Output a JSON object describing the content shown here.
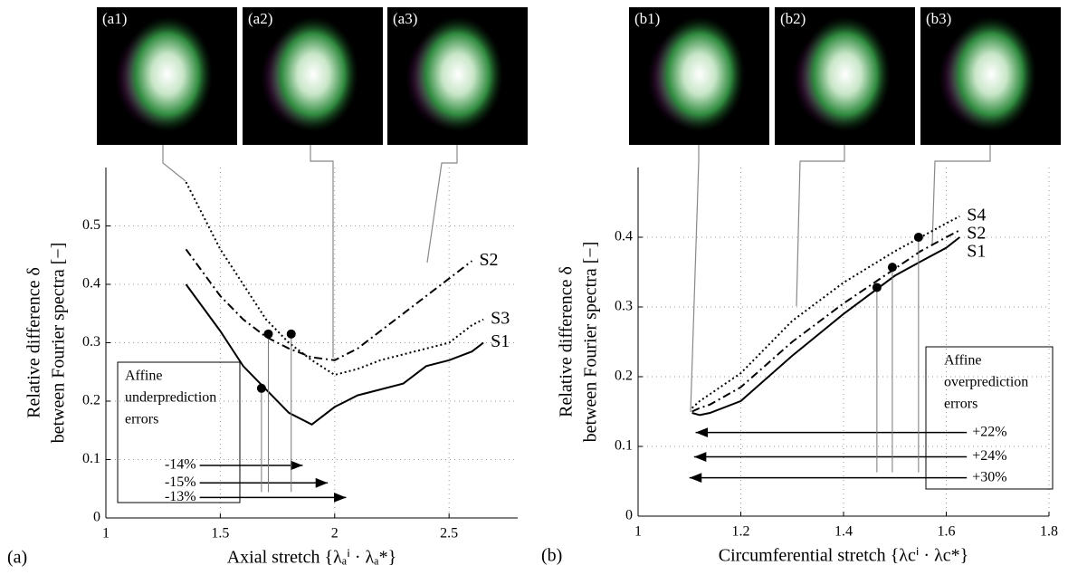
{
  "chart_data": [
    {
      "type": "line",
      "panel_label": "(a)",
      "insets": [
        "(a1)",
        "(a2)",
        "(a3)"
      ],
      "xlabel": "Axial stretch {λₐⁱ · λₐ*}",
      "ylabel": [
        "Relative difference δ",
        "between Fourier spectra [−]"
      ],
      "x": [
        1.35,
        1.5,
        1.6,
        1.7,
        1.8,
        1.9,
        2.0,
        2.1,
        2.2,
        2.3,
        2.4,
        2.5,
        2.6,
        2.65
      ],
      "series": [
        {
          "name": "S1",
          "color": "#000000",
          "style": "solid",
          "values": [
            0.4,
            0.32,
            0.26,
            0.22,
            0.18,
            0.16,
            0.19,
            0.21,
            0.22,
            0.23,
            0.26,
            0.27,
            0.285,
            0.3
          ]
        },
        {
          "name": "S2",
          "color": "#000000",
          "style": "dash-dot",
          "values": [
            0.46,
            0.38,
            0.34,
            0.31,
            0.29,
            0.275,
            0.27,
            0.29,
            0.32,
            0.35,
            0.38,
            0.41,
            0.44,
            null
          ]
        },
        {
          "name": "S3",
          "color": "#000000",
          "style": "dotted",
          "values": [
            0.575,
            0.46,
            0.4,
            0.34,
            0.3,
            0.27,
            0.245,
            0.255,
            0.27,
            0.28,
            0.29,
            0.3,
            0.33,
            0.34
          ]
        }
      ],
      "points": {
        "x": [
          1.68,
          1.71,
          1.81
        ],
        "y": [
          0.222,
          0.315,
          0.315
        ]
      },
      "box": [
        "Affine",
        "underprediction",
        "errors"
      ],
      "arrows": [
        {
          "label": "-14%",
          "x_from": 1.41,
          "x_to": 1.86,
          "y": 0.09
        },
        {
          "label": "-15%",
          "x_from": 1.41,
          "x_to": 1.97,
          "y": 0.06
        },
        {
          "label": "-13%",
          "x_from": 1.41,
          "x_to": 2.05,
          "y": 0.035
        }
      ],
      "xlim": [
        1,
        2.8
      ],
      "ylim": [
        0,
        0.6
      ],
      "xticks": [
        1,
        1.5,
        2,
        2.5
      ],
      "yticks": [
        0,
        0.1,
        0.2,
        0.3,
        0.4,
        0.5
      ],
      "grid": true
    },
    {
      "type": "line",
      "panel_label": "(b)",
      "insets": [
        "(b1)",
        "(b2)",
        "(b3)"
      ],
      "xlabel": "Circumferential stretch {λcⁱ · λc*}",
      "ylabel": [
        "Relative difference δ",
        "between Fourier spectra [−]"
      ],
      "x": [
        1.105,
        1.12,
        1.14,
        1.2,
        1.3,
        1.4,
        1.5,
        1.55,
        1.6,
        1.626
      ],
      "series": [
        {
          "name": "S4",
          "color": "#000000",
          "style": "dotted",
          "values": [
            0.155,
            0.165,
            0.175,
            0.205,
            0.28,
            0.335,
            0.38,
            0.4,
            0.42,
            0.43
          ]
        },
        {
          "name": "S2",
          "color": "#000000",
          "style": "dash-dot",
          "values": [
            0.15,
            0.155,
            0.16,
            0.185,
            0.25,
            0.305,
            0.355,
            0.38,
            0.4,
            0.41
          ]
        },
        {
          "name": "S1",
          "color": "#000000",
          "style": "solid",
          "values": [
            0.148,
            0.145,
            0.148,
            0.165,
            0.23,
            0.29,
            0.345,
            0.365,
            0.385,
            0.4
          ]
        }
      ],
      "points": {
        "x": [
          1.465,
          1.495,
          1.546
        ],
        "y": [
          0.328,
          0.357,
          0.4
        ]
      },
      "box": [
        "Affine",
        "overprediction",
        "errors"
      ],
      "arrows": [
        {
          "label": "+22%",
          "x_from": 1.64,
          "x_to": 1.112,
          "y": 0.12
        },
        {
          "label": "+24%",
          "x_from": 1.64,
          "x_to": 1.109,
          "y": 0.085
        },
        {
          "label": "+30%",
          "x_from": 1.64,
          "x_to": 1.1,
          "y": 0.055
        }
      ],
      "xlim": [
        1,
        1.8
      ],
      "ylim": [
        0,
        0.5
      ],
      "xticks": [
        1,
        1.2,
        1.4,
        1.6,
        1.8
      ],
      "yticks": [
        0,
        0.1,
        0.2,
        0.3,
        0.4
      ],
      "grid": true
    }
  ]
}
